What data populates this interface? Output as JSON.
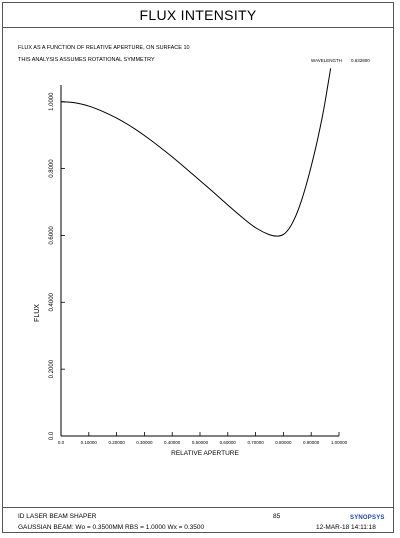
{
  "header": {
    "title": "FLUX INTENSITY",
    "subtitle_line1": "FLUX AS A FUNCTION OF RELATIVE APERTURE, ON SURFACE   10",
    "subtitle_line2": "THIS ANALYSIS ASSUMES ROTATIONAL SYMMETRY",
    "wavelength_label": "WAVELENGTH",
    "wavelength_value": "0.632800"
  },
  "chart_data": {
    "type": "line",
    "xlabel": "RELATIVE APERTURE",
    "ylabel": "FLUX",
    "xlim": [
      0,
      1
    ],
    "ylim": [
      0,
      1.05
    ],
    "x_ticks": [
      "0.0",
      "0.10000",
      "0.20000",
      "0.30000",
      "0.40000",
      "0.50000",
      "0.60000",
      "0.70000",
      "0.80000",
      "0.90000",
      "1.00000"
    ],
    "y_ticks": [
      "0.0",
      "0.2000",
      "0.4000",
      "0.6000",
      "0.8000",
      "1.0000"
    ],
    "grid": false,
    "series": [
      {
        "color": "#000000",
        "x": [
          0.0,
          0.05,
          0.1,
          0.15,
          0.2,
          0.25,
          0.3,
          0.35,
          0.4,
          0.45,
          0.5,
          0.55,
          0.6,
          0.65,
          0.7,
          0.75,
          0.78,
          0.8,
          0.82,
          0.84,
          0.86,
          0.88,
          0.9,
          0.92,
          0.94,
          0.95,
          0.96,
          0.97
        ],
        "y": [
          1.0,
          0.997,
          0.987,
          0.971,
          0.951,
          0.927,
          0.899,
          0.868,
          0.835,
          0.8,
          0.764,
          0.728,
          0.691,
          0.655,
          0.623,
          0.602,
          0.598,
          0.603,
          0.62,
          0.65,
          0.692,
          0.745,
          0.807,
          0.876,
          0.955,
          1.0,
          1.05,
          1.1
        ]
      }
    ]
  },
  "footer": {
    "system_name": "ID LASER BEAM SHAPER",
    "beam_info": "GAUSSIAN BEAM: Wo =  0.3500MM   RBS =  1.0000 Wx =  0.3500",
    "page_number": "85",
    "date_time": "12-MAR-18  14:11:18",
    "logo_text": "SYNOPSYS",
    "accent_color": "#1a3fbf"
  }
}
